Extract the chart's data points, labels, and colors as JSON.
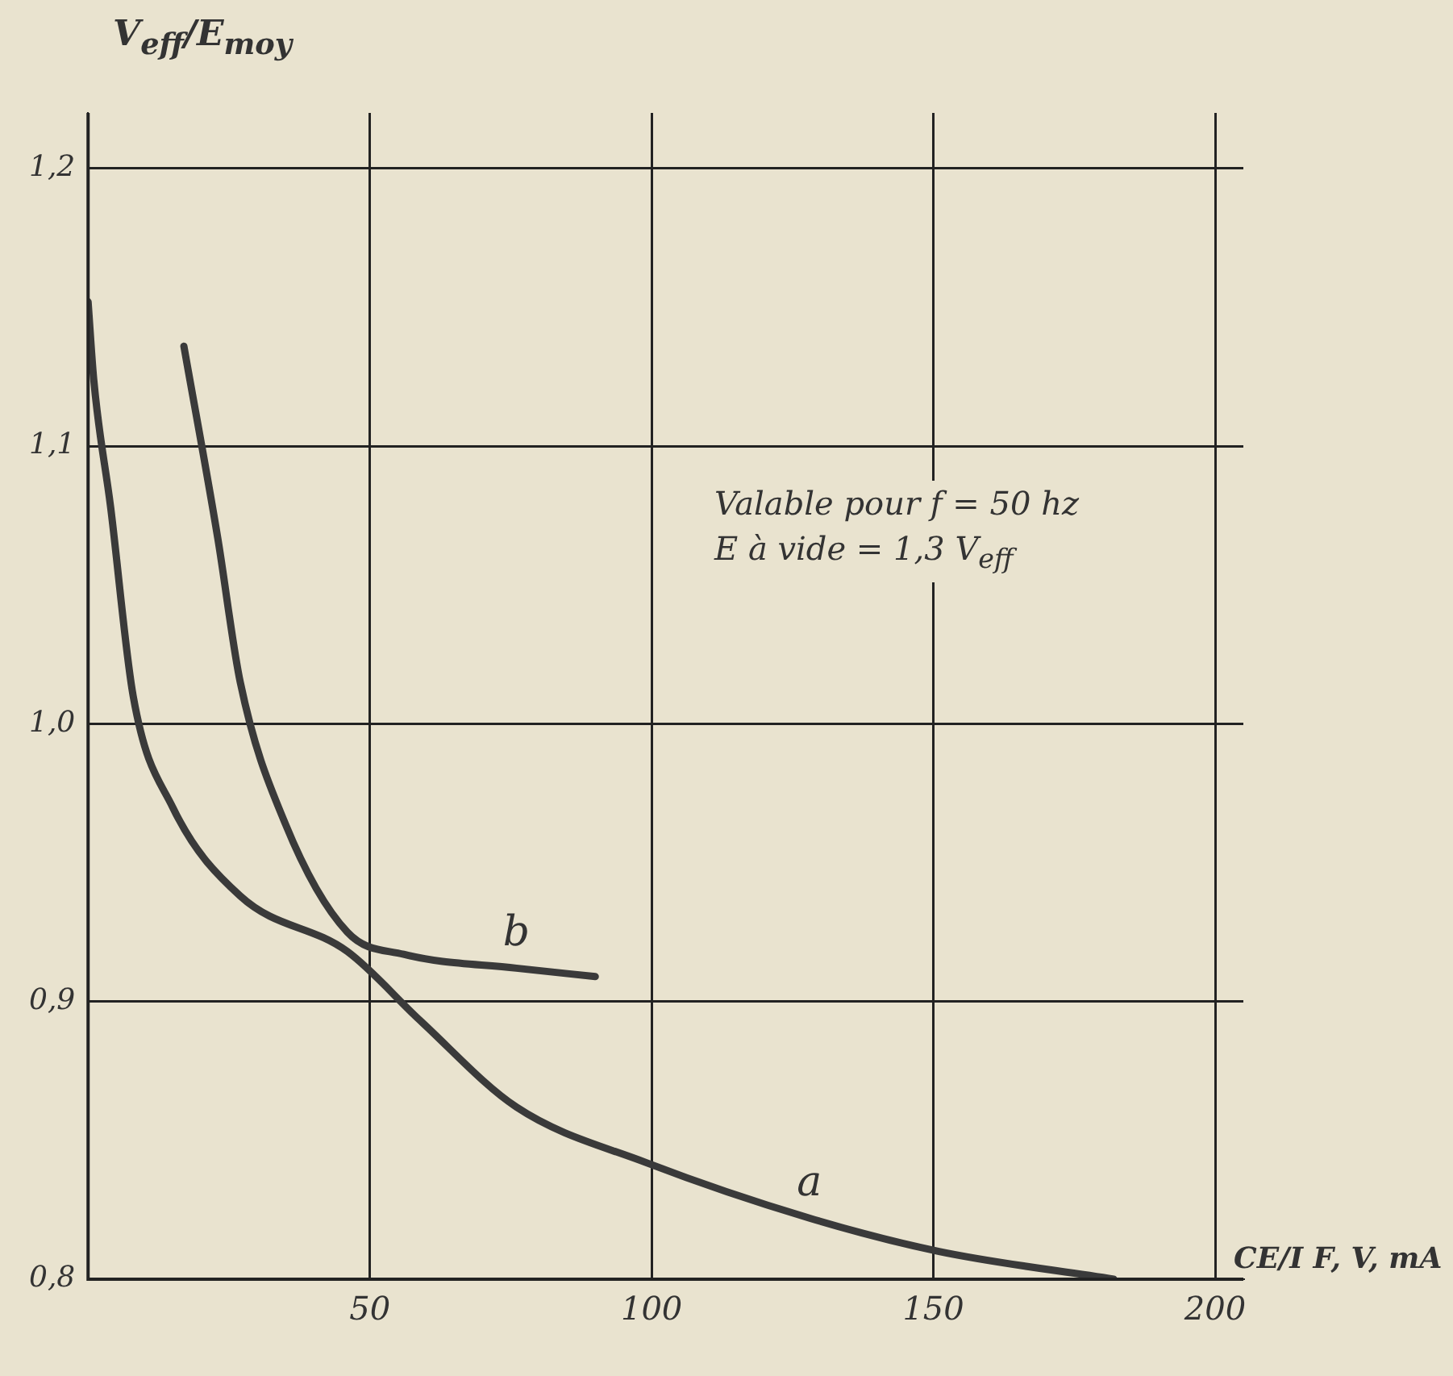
{
  "chart_data": {
    "type": "line",
    "xlabel": "CE/I  F, V, mA",
    "ylabel": "V$_{eff}$/E$_{moy}$",
    "annotations": [
      "Valable pour f = 50 hz",
      "E à vide = 1,3 V$_{eff}$"
    ],
    "series": [
      {
        "name": "a",
        "color": "#3a3a3a",
        "x": [
          0,
          1,
          4,
          8,
          15,
          27,
          46,
          59,
          76,
          99,
          128,
          151,
          182
        ],
        "values": [
          1.152,
          1.124,
          1.078,
          1.01,
          0.97,
          0.938,
          0.918,
          0.893,
          0.862,
          0.842,
          0.822,
          0.81,
          0.8
        ]
      },
      {
        "name": "b",
        "color": "#3a3a3a",
        "x": [
          17,
          23,
          27,
          35,
          46,
          56,
          76,
          90
        ],
        "values": [
          1.136,
          1.067,
          1.015,
          0.964,
          0.925,
          0.917,
          0.912,
          0.909
        ]
      }
    ],
    "xlim": [
      0,
      205
    ],
    "xticks": [
      50,
      100,
      150,
      200
    ],
    "ylim": [
      0.8,
      1.22
    ],
    "yticks": [
      {
        "value": 0.8,
        "label": "0,8"
      },
      {
        "value": 0.9,
        "label": "0,9"
      },
      {
        "value": 1.0,
        "label": "1,0"
      },
      {
        "value": 1.1,
        "label": "1,1"
      },
      {
        "value": 1.2,
        "label": "1,2"
      }
    ],
    "grid": true,
    "marker": "none",
    "line_style": "solid",
    "legend": false
  }
}
